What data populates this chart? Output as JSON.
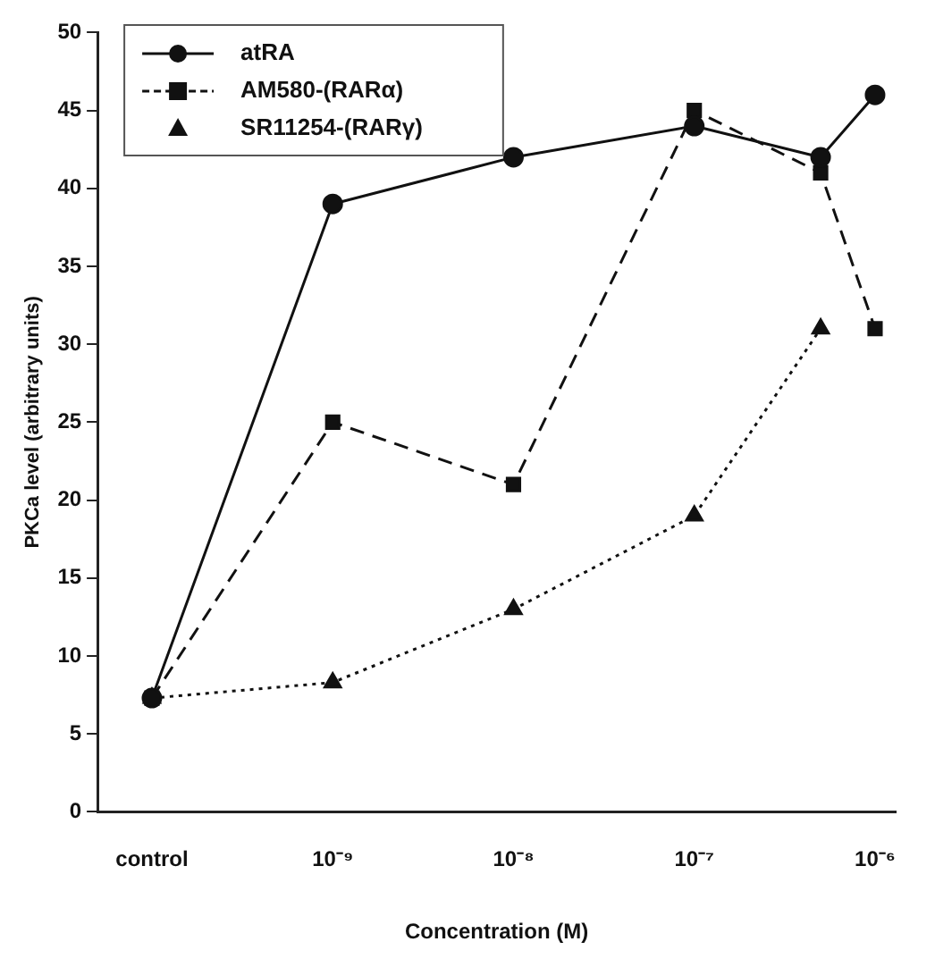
{
  "chart_data": {
    "type": "line",
    "xlabel": "Concentration (M)",
    "ylabel": "PKCa level (arbitrary units)",
    "x": [
      1e-10,
      1e-09,
      1e-08,
      1e-07,
      5e-07,
      1e-06
    ],
    "log": "x",
    "xlim": [
      5e-11,
      1.3e-06
    ],
    "xticks": [
      {
        "value": 1e-10,
        "label": "control"
      },
      {
        "value": 1e-09,
        "label": "10⁻⁹"
      },
      {
        "value": 1e-08,
        "label": "10⁻⁸"
      },
      {
        "value": 1e-07,
        "label": "10⁻⁷"
      },
      {
        "value": 1e-06,
        "label": "10⁻⁶"
      }
    ],
    "ylim": [
      0,
      50
    ],
    "yticks": [
      0,
      5,
      10,
      15,
      20,
      25,
      30,
      35,
      40,
      45,
      50
    ],
    "grid": false,
    "legend": "top left",
    "series": [
      {
        "name": "atRA",
        "color": "#111111",
        "marker": "circle",
        "line_style": "solid",
        "values": [
          7.3,
          39,
          42,
          44,
          42,
          46
        ]
      },
      {
        "name": "AM580-(RARα)",
        "color": "#111111",
        "marker": "square",
        "line_style": "dashed",
        "values": [
          7.3,
          25,
          21,
          45,
          41,
          31
        ]
      },
      {
        "name": "SR11254-(RARγ)",
        "color": "#111111",
        "marker": "triangle",
        "line_style": "dotted",
        "values": [
          7.3,
          8.3,
          13,
          19,
          31,
          null
        ]
      }
    ]
  }
}
